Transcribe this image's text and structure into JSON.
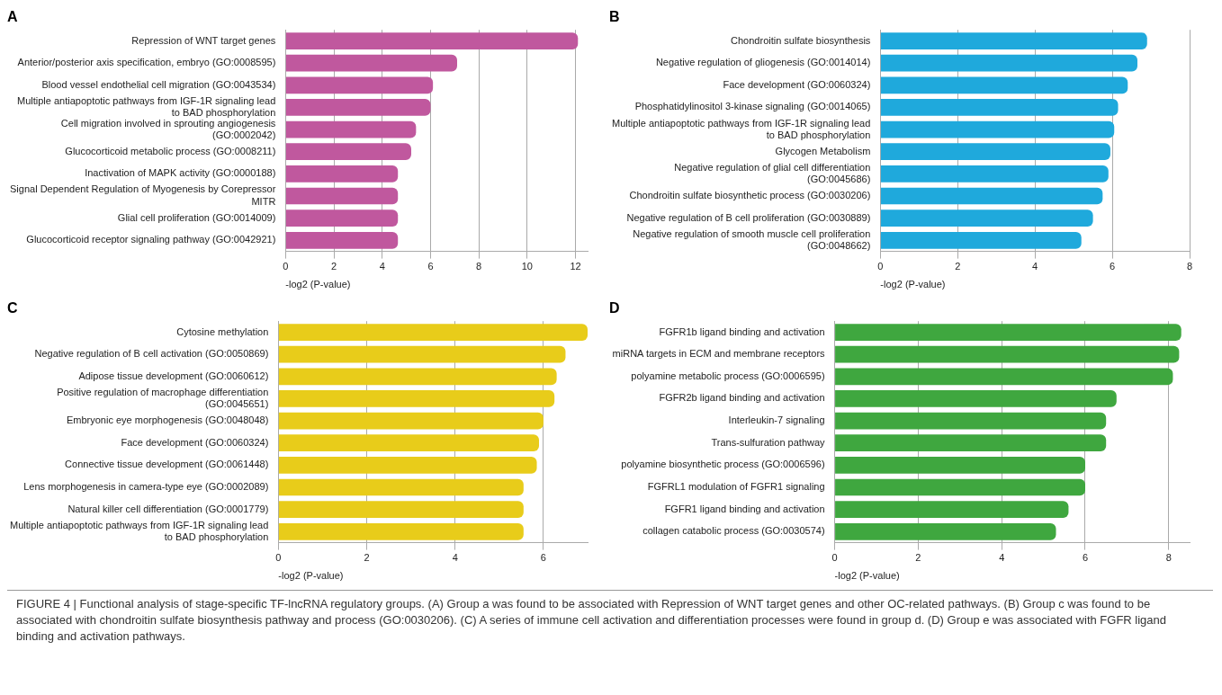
{
  "chart_data": [
    {
      "type": "bar",
      "orientation": "horizontal",
      "title": "A",
      "xlabel": "-log2 (P-value)",
      "color": "#c0589e",
      "grid": "x",
      "legend": false,
      "xlim": [
        0,
        12.5
      ],
      "xticks": [
        0,
        2,
        4,
        6,
        8,
        10,
        12
      ],
      "categories": [
        "Repression of WNT target genes",
        "Anterior/posterior axis specification, embryo (GO:0008595)",
        "Blood vessel endothelial cell migration (GO:0043534)",
        "Multiple antiapoptotic pathways from IGF-1R signaling lead to BAD phosphorylation",
        "Cell migration involved in sprouting angiogenesis (GO:0002042)",
        "Glucocorticoid metabolic process (GO:0008211)",
        "Inactivation of MAPK activity (GO:0000188)",
        "Signal Dependent Regulation of Myogenesis by Corepressor MITR",
        "Glial cell proliferation (GO:0014009)",
        "Glucocorticoid receptor signaling pathway (GO:0042921)"
      ],
      "values": [
        12.1,
        7.1,
        6.1,
        6.0,
        5.4,
        5.2,
        4.65,
        4.65,
        4.65,
        4.65
      ]
    },
    {
      "type": "bar",
      "orientation": "horizontal",
      "title": "B",
      "xlabel": "-log2 (P-value)",
      "color": "#1fa9dc",
      "grid": "x",
      "legend": false,
      "xlim": [
        0,
        8
      ],
      "xticks": [
        0,
        2,
        4,
        6,
        8
      ],
      "categories": [
        "Chondroitin sulfate biosynthesis",
        "Negative regulation of gliogenesis (GO:0014014)",
        "Face development (GO:0060324)",
        "Phosphatidylinositol 3-kinase signaling (GO:0014065)",
        "Multiple antiapoptotic pathways from IGF-1R signaling lead to BAD phosphorylation",
        "Glycogen Metabolism",
        "Negative regulation of glial cell differentiation (GO:0045686)",
        "Chondroitin sulfate biosynthetic process (GO:0030206)",
        "Negative regulation of B cell proliferation (GO:0030889)",
        "Negative regulation of smooth muscle cell proliferation (GO:0048662)"
      ],
      "values": [
        6.9,
        6.65,
        6.4,
        6.15,
        6.05,
        5.95,
        5.9,
        5.75,
        5.5,
        5.2
      ]
    },
    {
      "type": "bar",
      "orientation": "horizontal",
      "title": "C",
      "xlabel": "-log2 (P-value)",
      "color": "#e8cc1a",
      "grid": "x",
      "legend": false,
      "xlim": [
        0,
        7
      ],
      "xticks": [
        0,
        2,
        4,
        6
      ],
      "categories": [
        "Cytosine methylation",
        "Negative regulation of B cell activation (GO:0050869)",
        "Adipose tissue development (GO:0060612)",
        "Positive regulation of macrophage differentiation (GO:0045651)",
        "Embryonic eye morphogenesis (GO:0048048)",
        "Face development (GO:0060324)",
        "Connective tissue development (GO:0061448)",
        "Lens morphogenesis in camera-type eye (GO:0002089)",
        "Natural killer cell differentiation (GO:0001779)",
        "Multiple antiapoptotic pathways from IGF-1R signaling lead to BAD phosphorylation"
      ],
      "values": [
        7.0,
        6.5,
        6.3,
        6.25,
        6.0,
        5.9,
        5.85,
        5.55,
        5.55,
        5.55
      ]
    },
    {
      "type": "bar",
      "orientation": "horizontal",
      "title": "D",
      "xlabel": "-log2 (P-value)",
      "color": "#3fa73f",
      "grid": "x",
      "legend": false,
      "xlim": [
        0,
        8.5
      ],
      "xticks": [
        0,
        2,
        4,
        6,
        8
      ],
      "categories": [
        "FGFR1b ligand binding and activation",
        "miRNA targets in ECM and membrane receptors",
        "polyamine metabolic process (GO:0006595)",
        "FGFR2b ligand binding and activation",
        "Interleukin-7 signaling",
        "Trans-sulfuration pathway",
        "polyamine biosynthetic process (GO:0006596)",
        "FGFRL1 modulation of FGFR1 signaling",
        "FGFR1 ligand binding and activation",
        "collagen catabolic process (GO:0030574)"
      ],
      "values": [
        8.3,
        8.25,
        8.1,
        6.75,
        6.5,
        6.5,
        6.0,
        6.0,
        5.6,
        5.3
      ]
    },
    {
      "type": "other",
      "annotations": [
        "FIGURE 4 | Functional analysis of stage-specific TF-lncRNA regulatory groups. (A) Group a was found to be associated with Repression of WNT target genes and other OC-related pathways. (B) Group c was found to be associated with chondroitin sulfate biosynthesis pathway and process (GO:0030206). (C) A series of immune cell activation and differentiation processes were found in group d. (D) Group e was associated with FGFR ligand binding and activation pathways."
      ]
    }
  ]
}
